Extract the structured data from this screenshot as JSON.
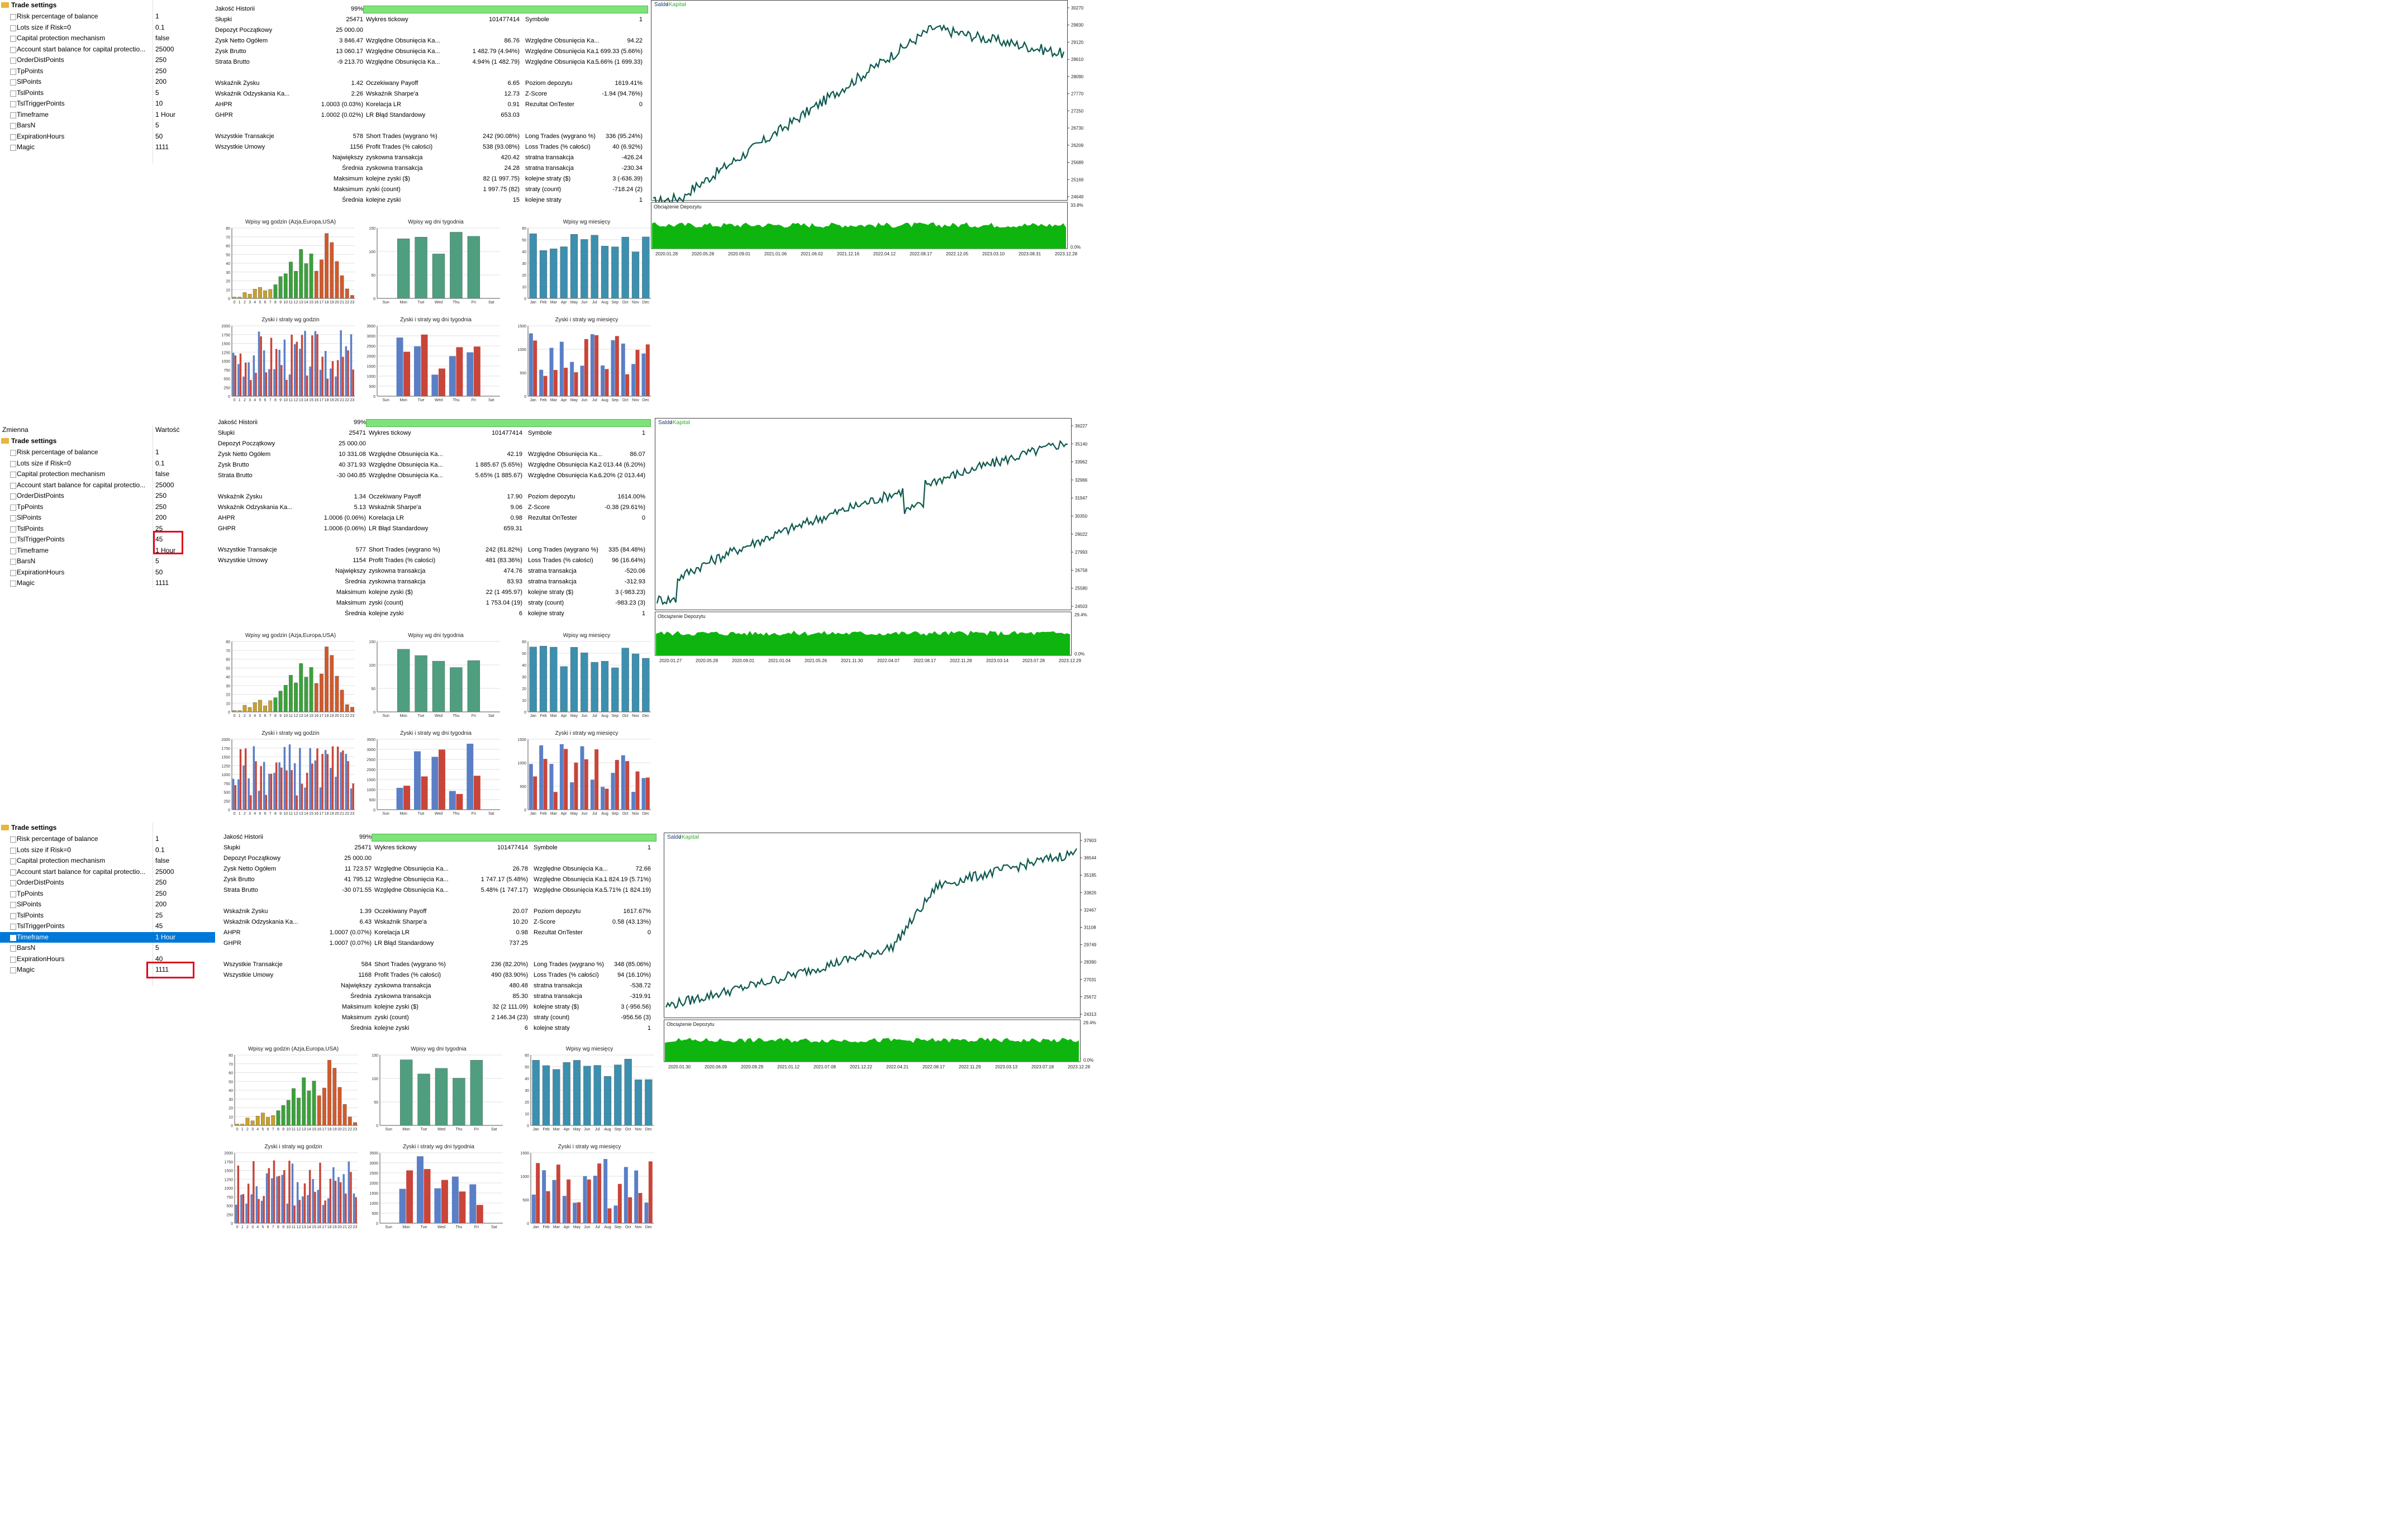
{
  "settings_header": "Trade settings",
  "col_headers": {
    "name": "Zmienna",
    "value": "Wartość"
  },
  "panels": [
    {
      "settings": [
        {
          "name": "Risk percentage of balance",
          "value": "1"
        },
        {
          "name": "Lots size if Risk=0",
          "value": "0.1"
        },
        {
          "name": "Capital protection mechanism",
          "value": "false"
        },
        {
          "name": "Account start balance for capital protectio...",
          "value": "25000"
        },
        {
          "name": "OrderDistPoints",
          "value": "250"
        },
        {
          "name": "TpPoints",
          "value": "250"
        },
        {
          "name": "SlPoints",
          "value": "200"
        },
        {
          "name": "TslPoints",
          "value": "5"
        },
        {
          "name": "TslTriggerPoints",
          "value": "10"
        },
        {
          "name": "Timeframe",
          "value": "1 Hour"
        },
        {
          "name": "BarsN",
          "value": "5"
        },
        {
          "name": "ExpirationHours",
          "value": "50"
        },
        {
          "name": "Magic",
          "value": "1111"
        }
      ],
      "stats": {
        "quality_label": "Jakość Historii",
        "quality_value": "99%",
        "bars_label": "Słupki",
        "bars_value": "25471",
        "ticks_label": "Wykres tickowy",
        "ticks_value": "101477414",
        "symbols_label": "Symbole",
        "symbols_value": "1",
        "deposit_label": "Depozyt Początkowy",
        "deposit_value": "25 000.00",
        "net_label": "Zysk Netto Ogółem",
        "net_value": "3 846.47",
        "gross_p_label": "Zysk Brutto",
        "gross_p_value": "13 060.17",
        "gross_l_label": "Strata Brutto",
        "gross_l_value": "-9 213.70",
        "dd1_label": "Względne Obsunięcia Ka...",
        "dd1_value": "86.76",
        "dd2_label": "Względne Obsunięcia Ka...",
        "dd2_value": "1 482.79 (4.94%)",
        "dd3_label": "Względne Obsunięcia Ka...",
        "dd3_value": "4.94% (1 482.79)",
        "dd4_label": "Względne Obsunięcia Ka...",
        "dd4_value": "94.22",
        "dd5_label": "Względne Obsunięcia Ka...",
        "dd5_value": "1 699.33 (5.66%)",
        "dd6_label": "Względne Obsunięcia Ka...",
        "dd6_value": "5.66% (1 699.33)",
        "pf_label": "Wskaźnik Zysku",
        "pf_value": "1.42",
        "rf_label": "Wskaźnik Odzyskania Ka...",
        "rf_value": "2.26",
        "ahpr_label": "AHPR",
        "ahpr_value": "1.0003 (0.03%)",
        "ghpr_label": "GHPR",
        "ghpr_value": "1.0002 (0.02%)",
        "ep_label": "Oczekiwany Payoff",
        "ep_value": "6.65",
        "sharpe_label": "Wskaźnik Sharpe'a",
        "sharpe_value": "12.73",
        "lrc_label": "Korelacja LR",
        "lrc_value": "0.91",
        "lrse_label": "LR Błąd Standardowy",
        "lrse_value": "653.03",
        "margin_label": "Poziom depozytu",
        "margin_value": "1619.41%",
        "z_label": "Z-Score",
        "z_value": "-1.94 (94.76%)",
        "ot_label": "Rezultat OnTester",
        "ot_value": "0",
        "trades_label": "Wszystkie Transakcje",
        "trades_value": "578",
        "deals_label": "Wszystkie Umowy",
        "deals_value": "1156",
        "short_label": "Short Trades (wygrano %)",
        "short_value": "242 (90.08%)",
        "long_label": "Long Trades (wygrano %)",
        "long_value": "336 (95.24%)",
        "profit_tr_label": "Profit Trades (% całości)",
        "profit_tr_value": "538 (93.08%)",
        "loss_tr_label": "Loss Trades (% całości)",
        "loss_tr_value": "40 (6.92%)",
        "largest_label": "Największy",
        "avg_label": "Średnia",
        "max_label": "Maksimum",
        "max2_label": "Maksimum",
        "avg2_label": "Średnia",
        "ptr_label": "zyskowna transakcja",
        "ptr_value": "420.42",
        "ltr_label": "stratna transakcja",
        "ltr_value": "-426.24",
        "aptr_label": "zyskowna transakcja",
        "aptr_value": "24.28",
        "altr_label": "stratna transakcja",
        "altr_value": "-230.34",
        "mcw_label": "kolejne zyski ($)",
        "mcw_value": "82 (1 997.75)",
        "mcl_label": "kolejne straty ($)",
        "mcl_value": "3 (-636.39)",
        "mcp_label": "zyski (count)",
        "mcp_value": "1 997.75 (82)",
        "mcls_label": "straty (count)",
        "mcls_value": "-718.24 (2)",
        "acw_label": "kolejne zyski",
        "acw_value": "15",
        "acl_label": "kolejne straty",
        "acl_value": "1"
      },
      "balance_legend": {
        "balance": "Saldo",
        "equity": "Kapitał"
      },
      "y_ticks": [
        "30270",
        "29830",
        "29120",
        "28610",
        "28090",
        "27770",
        "27250",
        "26730",
        "26209",
        "25689",
        "25169",
        "24649"
      ],
      "x_dates": [
        "2020.01.28",
        "2020.05.28",
        "2020.09.01",
        "2021.01.06",
        "2021.06.02",
        "2021.12.16",
        "2022.04.12",
        "2022.08.17",
        "2022.12.05",
        "2023.03.10",
        "2023.08.31",
        "2023.12.28"
      ],
      "dep_label": "Obciążenie Depozytu",
      "dep_top": "33.8%",
      "dep_bot": "0.0%",
      "chart_titles": {
        "hours": "Wpisy wg godzin (Azja,Europa,USA)",
        "weekdays": "Wpisy wg dni tygodnia",
        "months": "Wpisy wg miesięcy",
        "pl_hours": "Zyski i straty wg godzin",
        "pl_weekdays": "Zyski i straty wg dni tygodnia",
        "pl_months": "Zyski i straty wg miesięcy"
      }
    },
    {
      "settings": [
        {
          "name": "Risk percentage of balance",
          "value": "1"
        },
        {
          "name": "Lots size if Risk=0",
          "value": "0.1"
        },
        {
          "name": "Capital protection mechanism",
          "value": "false"
        },
        {
          "name": "Account start balance for capital protectio...",
          "value": "25000"
        },
        {
          "name": "OrderDistPoints",
          "value": "250"
        },
        {
          "name": "TpPoints",
          "value": "250"
        },
        {
          "name": "SlPoints",
          "value": "200"
        },
        {
          "name": "TslPoints",
          "value": "25"
        },
        {
          "name": "TslTriggerPoints",
          "value": "45"
        },
        {
          "name": "Timeframe",
          "value": "1 Hour"
        },
        {
          "name": "BarsN",
          "value": "5"
        },
        {
          "name": "ExpirationHours",
          "value": "50"
        },
        {
          "name": "Magic",
          "value": "1111"
        }
      ],
      "stats": {
        "quality_label": "Jakość Historii",
        "quality_value": "99%",
        "bars_label": "Słupki",
        "bars_value": "25471",
        "ticks_label": "Wykres tickowy",
        "ticks_value": "101477414",
        "symbols_label": "Symbole",
        "symbols_value": "1",
        "deposit_label": "Depozyt Początkowy",
        "deposit_value": "25 000.00",
        "net_label": "Zysk Netto Ogółem",
        "net_value": "10 331.08",
        "gross_p_label": "Zysk Brutto",
        "gross_p_value": "40 371.93",
        "gross_l_label": "Strata Brutto",
        "gross_l_value": "-30 040.85",
        "dd1_label": "Względne Obsunięcia Ka...",
        "dd1_value": "42.19",
        "dd2_label": "Względne Obsunięcia Ka...",
        "dd2_value": "1 885.67 (5.65%)",
        "dd3_label": "Względne Obsunięcia Ka...",
        "dd3_value": "5.65% (1 885.67)",
        "dd4_label": "Względne Obsunięcia Ka...",
        "dd4_value": "86.07",
        "dd5_label": "Względne Obsunięcia Ka...",
        "dd5_value": "2 013.44 (6.20%)",
        "dd6_label": "Względne Obsunięcia Ka...",
        "dd6_value": "6.20% (2 013.44)",
        "pf_label": "Wskaźnik Zysku",
        "pf_value": "1.34",
        "rf_label": "Wskaźnik Odzyskania Ka...",
        "rf_value": "5.13",
        "ahpr_label": "AHPR",
        "ahpr_value": "1.0006 (0.06%)",
        "ghpr_label": "GHPR",
        "ghpr_value": "1.0006 (0.06%)",
        "ep_label": "Oczekiwany Payoff",
        "ep_value": "17.90",
        "sharpe_label": "Wskaźnik Sharpe'a",
        "sharpe_value": "9.06",
        "lrc_label": "Korelacja LR",
        "lrc_value": "0.98",
        "lrse_label": "LR Błąd Standardowy",
        "lrse_value": "659.31",
        "margin_label": "Poziom depozytu",
        "margin_value": "1614.00%",
        "z_label": "Z-Score",
        "z_value": "-0.38 (29.61%)",
        "ot_label": "Rezultat OnTester",
        "ot_value": "0",
        "trades_label": "Wszystkie Transakcje",
        "trades_value": "577",
        "deals_label": "Wszystkie Umowy",
        "deals_value": "1154",
        "short_label": "Short Trades (wygrano %)",
        "short_value": "242 (81.82%)",
        "long_label": "Long Trades (wygrano %)",
        "long_value": "335 (84.48%)",
        "profit_tr_label": "Profit Trades (% całości)",
        "profit_tr_value": "481 (83.36%)",
        "loss_tr_label": "Loss Trades (% całości)",
        "loss_tr_value": "96 (16.64%)",
        "largest_label": "Największy",
        "avg_label": "Średnia",
        "max_label": "Maksimum",
        "max2_label": "Maksimum",
        "avg2_label": "Średnia",
        "ptr_label": "zyskowna transakcja",
        "ptr_value": "474.76",
        "ltr_label": "stratna transakcja",
        "ltr_value": "-520.06",
        "aptr_label": "zyskowna transakcja",
        "aptr_value": "83.93",
        "altr_label": "stratna transakcja",
        "altr_value": "-312.93",
        "mcw_label": "kolejne zyski ($)",
        "mcw_value": "22 (1 495.97)",
        "mcl_label": "kolejne straty ($)",
        "mcl_value": "3 (-983.23)",
        "mcp_label": "zyski (count)",
        "mcp_value": "1 753.04 (19)",
        "mcls_label": "straty (count)",
        "mcls_value": "-983.23 (3)",
        "acw_label": "kolejne zyski",
        "acw_value": "6",
        "acl_label": "kolejne straty",
        "acl_value": "1"
      },
      "balance_legend": {
        "balance": "Saldo",
        "equity": "Kapitał"
      },
      "y_ticks": [
        "36227",
        "35140",
        "33962",
        "32966",
        "31947",
        "30350",
        "29022",
        "27993",
        "26758",
        "25580",
        "24503"
      ],
      "x_dates": [
        "2020.01.27",
        "2020.05.28",
        "2020.09.01",
        "2021.01.04",
        "2021.05.26",
        "2021.11.30",
        "2022.04.07",
        "2022.08.17",
        "2022.11.28",
        "2023.03.14",
        "2023.07.28",
        "2023.12.29"
      ],
      "dep_label": "Obciążenie Depozytu",
      "dep_top": "29.4%",
      "dep_bot": "0.0%",
      "chart_titles": {
        "hours": "Wpisy wg godzin (Azja,Europa,USA)",
        "weekdays": "Wpisy wg dni tygodnia",
        "months": "Wpisy wg miesięcy",
        "pl_hours": "Zyski i straty wg godzin",
        "pl_weekdays": "Zyski i straty wg dni tygodnia",
        "pl_months": "Zyski i straty wg miesięcy"
      }
    },
    {
      "settings": [
        {
          "name": "Risk percentage of balance",
          "value": "1"
        },
        {
          "name": "Lots size if Risk=0",
          "value": "0.1"
        },
        {
          "name": "Capital protection mechanism",
          "value": "false"
        },
        {
          "name": "Account start balance for capital protectio...",
          "value": "25000"
        },
        {
          "name": "OrderDistPoints",
          "value": "250"
        },
        {
          "name": "TpPoints",
          "value": "250"
        },
        {
          "name": "SlPoints",
          "value": "200"
        },
        {
          "name": "TslPoints",
          "value": "25"
        },
        {
          "name": "TslTriggerPoints",
          "value": "45"
        },
        {
          "name": "Timeframe",
          "value": "1 Hour"
        },
        {
          "name": "BarsN",
          "value": "5"
        },
        {
          "name": "ExpirationHours",
          "value": "40"
        },
        {
          "name": "Magic",
          "value": "1111"
        }
      ],
      "stats": {
        "quality_label": "Jakość Historii",
        "quality_value": "99%",
        "bars_label": "Słupki",
        "bars_value": "25471",
        "ticks_label": "Wykres tickowy",
        "ticks_value": "101477414",
        "symbols_label": "Symbole",
        "symbols_value": "1",
        "deposit_label": "Depozyt Początkowy",
        "deposit_value": "25 000.00",
        "net_label": "Zysk Netto Ogółem",
        "net_value": "11 723.57",
        "gross_p_label": "Zysk Brutto",
        "gross_p_value": "41 795.12",
        "gross_l_label": "Strata Brutto",
        "gross_l_value": "-30 071.55",
        "dd1_label": "Względne Obsunięcia Ka...",
        "dd1_value": "26.78",
        "dd2_label": "Względne Obsunięcia Ka...",
        "dd2_value": "1 747.17 (5.48%)",
        "dd3_label": "Względne Obsunięcia Ka...",
        "dd3_value": "5.48% (1 747.17)",
        "dd4_label": "Względne Obsunięcia Ka...",
        "dd4_value": "72.66",
        "dd5_label": "Względne Obsunięcia Ka...",
        "dd5_value": "1 824.19 (5.71%)",
        "dd6_label": "Względne Obsunięcia Ka...",
        "dd6_value": "5.71% (1 824.19)",
        "pf_label": "Wskaźnik Zysku",
        "pf_value": "1.39",
        "rf_label": "Wskaźnik Odzyskania Ka...",
        "rf_value": "6.43",
        "ahpr_label": "AHPR",
        "ahpr_value": "1.0007 (0.07%)",
        "ghpr_label": "GHPR",
        "ghpr_value": "1.0007 (0.07%)",
        "ep_label": "Oczekiwany Payoff",
        "ep_value": "20.07",
        "sharpe_label": "Wskaźnik Sharpe'a",
        "sharpe_value": "10.20",
        "lrc_label": "Korelacja LR",
        "lrc_value": "0.98",
        "lrse_label": "LR Błąd Standardowy",
        "lrse_value": "737.25",
        "margin_label": "Poziom depozytu",
        "margin_value": "1617.67%",
        "z_label": "Z-Score",
        "z_value": "0.58 (43.13%)",
        "ot_label": "Rezultat OnTester",
        "ot_value": "0",
        "trades_label": "Wszystkie Transakcje",
        "trades_value": "584",
        "deals_label": "Wszystkie Umowy",
        "deals_value": "1168",
        "short_label": "Short Trades (wygrano %)",
        "short_value": "236 (82.20%)",
        "long_label": "Long Trades (wygrano %)",
        "long_value": "348 (85.06%)",
        "profit_tr_label": "Profit Trades (% całości)",
        "profit_tr_value": "490 (83.90%)",
        "loss_tr_label": "Loss Trades (% całości)",
        "loss_tr_value": "94 (16.10%)",
        "largest_label": "Największy",
        "avg_label": "Średnia",
        "max_label": "Maksimum",
        "max2_label": "Maksimum",
        "avg2_label": "Średnia",
        "ptr_label": "zyskowna transakcja",
        "ptr_value": "480.48",
        "ltr_label": "stratna transakcja",
        "ltr_value": "-538.72",
        "aptr_label": "zyskowna transakcja",
        "aptr_value": "85.30",
        "altr_label": "stratna transakcja",
        "altr_value": "-319.91",
        "mcw_label": "kolejne zyski ($)",
        "mcw_value": "32 (2 111.09)",
        "mcl_label": "kolejne straty ($)",
        "mcl_value": "3 (-956.56)",
        "mcp_label": "zyski (count)",
        "mcp_value": "2 146.34 (23)",
        "mcls_label": "straty (count)",
        "mcls_value": "-956.56 (3)",
        "acw_label": "kolejne zyski",
        "acw_value": "6",
        "acl_label": "kolejne straty",
        "acl_value": "1"
      },
      "balance_legend": {
        "balance": "Saldo",
        "equity": "Kapitał"
      },
      "y_ticks": [
        "37903",
        "36544",
        "35185",
        "33826",
        "32467",
        "31108",
        "29749",
        "28390",
        "27031",
        "25672",
        "24313"
      ],
      "x_dates": [
        "2020.01.30",
        "2020.06.09",
        "2020.09.29",
        "2021.01.12",
        "2021.07.08",
        "2021.12.22",
        "2022.04.21",
        "2022.08.17",
        "2022.11.29",
        "2023.03.13",
        "2023.07.18",
        "2023.12.28"
      ],
      "dep_label": "Obciążenie Depozytu",
      "dep_top": "29.4%",
      "dep_bot": "0.0%",
      "chart_titles": {
        "hours": "Wpisy wg godzin (Azja,Europa,USA)",
        "weekdays": "Wpisy wg dni tygodnia",
        "months": "Wpisy wg miesięcy",
        "pl_hours": "Zyski i straty wg godzin",
        "pl_weekdays": "Zyski i straty wg dni tygodnia",
        "pl_months": "Zyski i straty wg miesięcy"
      }
    }
  ],
  "hour_axis": [
    "0",
    "1",
    "2",
    "3",
    "4",
    "5",
    "6",
    "7",
    "8",
    "9",
    "10",
    "11",
    "12",
    "13",
    "14",
    "15",
    "16",
    "17",
    "18",
    "19",
    "20",
    "21",
    "22",
    "23"
  ],
  "weekday_axis": [
    "Sun",
    "Mon",
    "Tue",
    "Wed",
    "Thu",
    "Fri",
    "Sat"
  ],
  "month_axis": [
    "Jan",
    "Feb",
    "Mar",
    "Apr",
    "May",
    "Jun",
    "Jul",
    "Aug",
    "Sep",
    "Oct",
    "Nov",
    "Dec"
  ],
  "hist_y_hours": [
    "80",
    "70",
    "60",
    "50",
    "40",
    "30",
    "20",
    "10",
    "0"
  ],
  "hist_y_week": [
    "150",
    "100",
    "50",
    "0"
  ],
  "hist_y_month": [
    "60",
    "50",
    "40",
    "30",
    "20",
    "10",
    "0"
  ],
  "hist_y_plh": [
    "2000",
    "1750",
    "1500",
    "1250",
    "1000",
    "750",
    "500",
    "250",
    "0"
  ],
  "hist_y_plw": [
    "3500",
    "3000",
    "2500",
    "2000",
    "1500",
    "1000",
    "500",
    "0"
  ],
  "hist_y_plm": [
    "1500",
    "1000",
    "500",
    "0"
  ],
  "colors": {
    "asia": "#c8a12b",
    "europe": "#3aa23a",
    "usa": "#d25a2a",
    "week": "#4f9e80",
    "month": "#3c8fae",
    "profit": "#5b7fc6",
    "loss": "#c8453a",
    "balance": "#1a3a78",
    "equity": "#2fb12f",
    "deposit": "#0fb50f"
  },
  "chart_data": [
    {
      "type": "line",
      "title": "",
      "series": [
        {
          "name": "Saldo"
        },
        {
          "name": "Kapitał"
        }
      ]
    },
    {
      "type": "bar",
      "title": "Wpisy wg godzin (Azja,Europa,USA)"
    },
    {
      "type": "bar",
      "title": "Wpisy wg dni tygodnia"
    },
    {
      "type": "bar",
      "title": "Wpisy wg miesięcy"
    }
  ]
}
